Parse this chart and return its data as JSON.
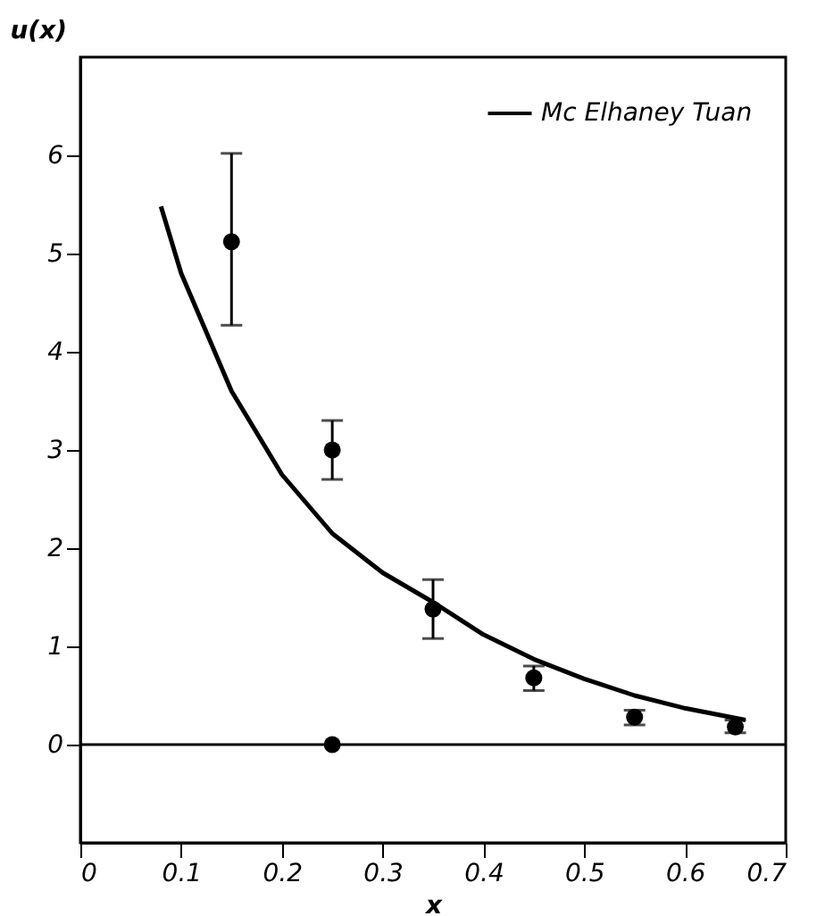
{
  "chart_data": {
    "type": "scatter",
    "xlabel": "x",
    "ylabel": "u(x)",
    "xlim": [
      0,
      0.7
    ],
    "ylim": [
      -1,
      7
    ],
    "xticks": [
      0,
      0.1,
      0.2,
      0.3,
      0.4,
      0.5,
      0.6,
      0.7
    ],
    "yticks": [
      0,
      1,
      2,
      3,
      4,
      5,
      6
    ],
    "grid": false,
    "legend": "top right",
    "marker": "circle",
    "series": [
      {
        "color": "#000000",
        "x": [
          0.15,
          0.25,
          0.35,
          0.45,
          0.55,
          0.65,
          0.25
        ],
        "values": [
          5.12,
          3.0,
          1.38,
          0.68,
          0.28,
          0.18,
          0.0
        ],
        "errors": [
          [
            4.27,
            6.02
          ],
          [
            2.7,
            3.3
          ],
          [
            1.08,
            1.68
          ],
          [
            0.55,
            0.8
          ],
          [
            0.2,
            0.35
          ],
          [
            0.12,
            0.25
          ],
          null
        ]
      },
      {
        "type": "line",
        "name": "Mc Elhaney Tuan",
        "color": "#000000",
        "line_style": "solid",
        "marker": "none",
        "x": [
          0.08,
          0.1,
          0.15,
          0.2,
          0.25,
          0.3,
          0.35,
          0.4,
          0.45,
          0.5,
          0.55,
          0.6,
          0.66
        ],
        "values": [
          5.48,
          4.8,
          3.6,
          2.75,
          2.15,
          1.75,
          1.45,
          1.12,
          0.87,
          0.67,
          0.5,
          0.37,
          0.25
        ]
      }
    ],
    "ref_lines": [
      {
        "axis": "y",
        "value": 0,
        "color": "#000000",
        "line_style": "solid"
      }
    ]
  }
}
